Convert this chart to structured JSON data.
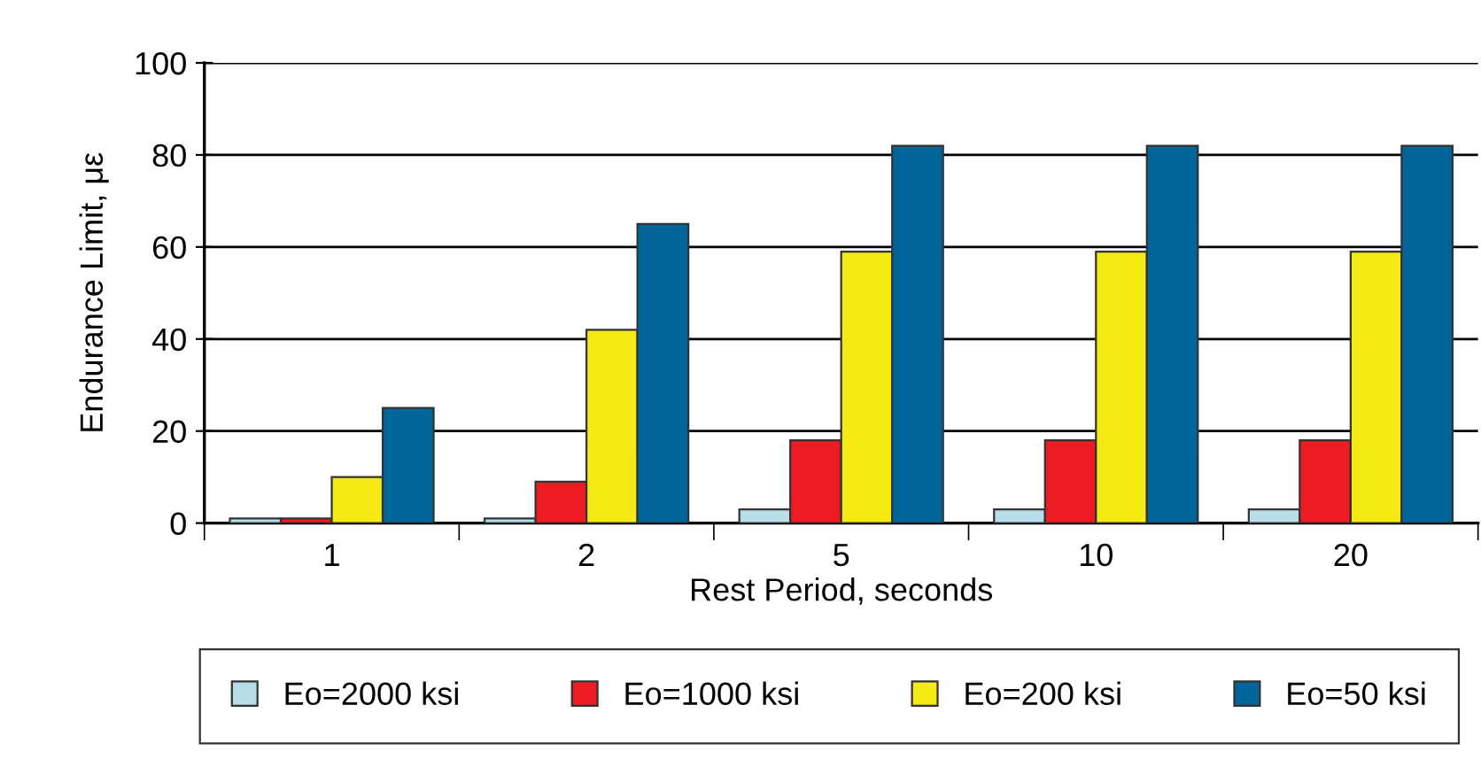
{
  "chart_data": {
    "type": "bar",
    "xlabel": "Rest Period, seconds",
    "ylabel": "Endurance Limit, με",
    "categories": [
      "1",
      "2",
      "5",
      "10",
      "20"
    ],
    "series": [
      {
        "name": "Eo=2000 ksi",
        "color": "#b7dde8",
        "values": [
          1,
          1,
          3,
          3,
          3
        ]
      },
      {
        "name": "Eo=1000 ksi",
        "color": "#ed1c24",
        "values": [
          1,
          9,
          18,
          18,
          18
        ]
      },
      {
        "name": "Eo=200 ksi",
        "color": "#f5ea14",
        "values": [
          10,
          42,
          59,
          59,
          59
        ]
      },
      {
        "name": "Eo=50 ksi",
        "color": "#006699",
        "values": [
          25,
          65,
          82,
          82,
          82
        ]
      }
    ],
    "ylim": [
      0,
      100
    ],
    "yticks": [
      0,
      20,
      40,
      60,
      80,
      100
    ],
    "grid": "y",
    "legend": "bottom"
  }
}
